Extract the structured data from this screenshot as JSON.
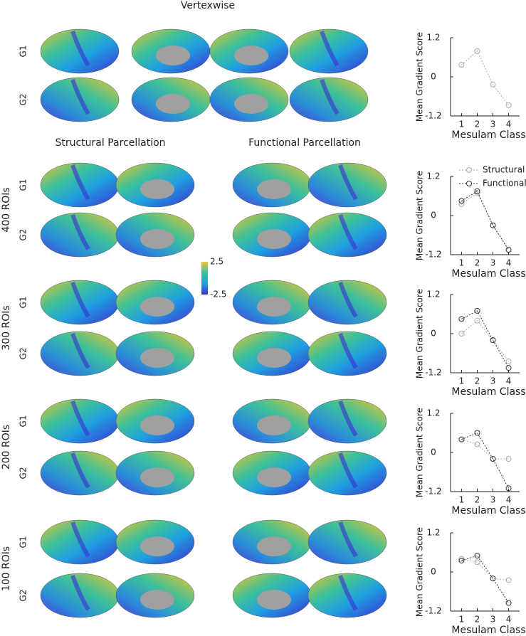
{
  "figure": {
    "vertexwise": "Vertexwise",
    "structural": "Structural Parcellation",
    "functional": "Functional Parcellation",
    "gradients": [
      "G1",
      "G2"
    ],
    "rows": [
      "400 ROIs",
      "300 ROIs",
      "200 ROIs",
      "100 ROIs"
    ]
  },
  "colorbar": {
    "lim": [
      -2.5,
      2.5
    ],
    "ticks": [
      2.5,
      -2.5
    ],
    "colors": [
      "#3b2fd0",
      "#1fa0e0",
      "#3cc09a",
      "#f2c52b"
    ]
  },
  "chart_data": [
    {
      "type": "line",
      "xlabel": "Mesulam Class",
      "ylabel": "Mean Gradient Score",
      "x": [
        1,
        2,
        3,
        4
      ],
      "xlim": [
        0.3,
        4.7
      ],
      "xticks": [
        1,
        2,
        3,
        4
      ],
      "ylim": [
        -1.2,
        1.2
      ],
      "yticks": [
        1.2,
        0,
        -1.2
      ],
      "series": [
        {
          "color": "#aaaaaa",
          "values": [
            0.37,
            0.79,
            -0.24,
            -0.87
          ]
        }
      ]
    },
    {
      "type": "line",
      "xlabel": "Mesulam Class",
      "ylabel": "Mean Gradient Score",
      "x": [
        1,
        2,
        3,
        4
      ],
      "xlim": [
        0.3,
        4.7
      ],
      "xticks": [
        1,
        2,
        3,
        4
      ],
      "ylim": [
        -1.2,
        1.2
      ],
      "yticks": [
        1.2,
        0,
        -1.2
      ],
      "legend": "upper right",
      "series": [
        {
          "name": "Structural",
          "color": "#aaaaaa",
          "values": [
            0.35,
            0.7,
            -0.3,
            -1.05
          ]
        },
        {
          "name": "Functional",
          "color": "#333333",
          "values": [
            0.45,
            0.75,
            -0.3,
            -1.05
          ]
        }
      ]
    },
    {
      "type": "line",
      "xlabel": "Mesulam Class",
      "ylabel": "Mean Gradient Score",
      "x": [
        1,
        2,
        3,
        4
      ],
      "xlim": [
        0.3,
        4.7
      ],
      "xticks": [
        1,
        2,
        3,
        4
      ],
      "ylim": [
        -1.2,
        1.2
      ],
      "yticks": [
        1.2,
        0,
        -1.2
      ],
      "series": [
        {
          "color": "#aaaaaa",
          "values": [
            0,
            0.4,
            -0.2,
            -0.85
          ]
        },
        {
          "color": "#333333",
          "values": [
            0.45,
            0.7,
            -0.2,
            -1.05
          ]
        }
      ]
    },
    {
      "type": "line",
      "xlabel": "Mesulam Class",
      "ylabel": "Mean Gradient Score",
      "x": [
        1,
        2,
        3,
        4
      ],
      "xlim": [
        0.3,
        4.7
      ],
      "xticks": [
        1,
        2,
        3,
        4
      ],
      "ylim": [
        -1.2,
        1.2
      ],
      "yticks": [
        1.2,
        0,
        -1.2
      ],
      "series": [
        {
          "color": "#aaaaaa",
          "values": [
            0.4,
            0.25,
            -0.2,
            -0.2
          ]
        },
        {
          "color": "#333333",
          "values": [
            0.4,
            0.6,
            -0.2,
            -1.1
          ]
        }
      ]
    },
    {
      "type": "line",
      "xlabel": "Mesulam Class",
      "ylabel": "Mean Gradient Score",
      "x": [
        1,
        2,
        3,
        4
      ],
      "xlim": [
        0.3,
        4.7
      ],
      "xticks": [
        1,
        2,
        3,
        4
      ],
      "ylim": [
        -1.2,
        1.2
      ],
      "yticks": [
        1.2,
        0,
        -1.2
      ],
      "series": [
        {
          "color": "#aaaaaa",
          "values": [
            0.4,
            0.3,
            -0.2,
            -0.25
          ]
        },
        {
          "color": "#333333",
          "values": [
            0.35,
            0.5,
            -0.2,
            -0.95
          ]
        }
      ]
    }
  ]
}
